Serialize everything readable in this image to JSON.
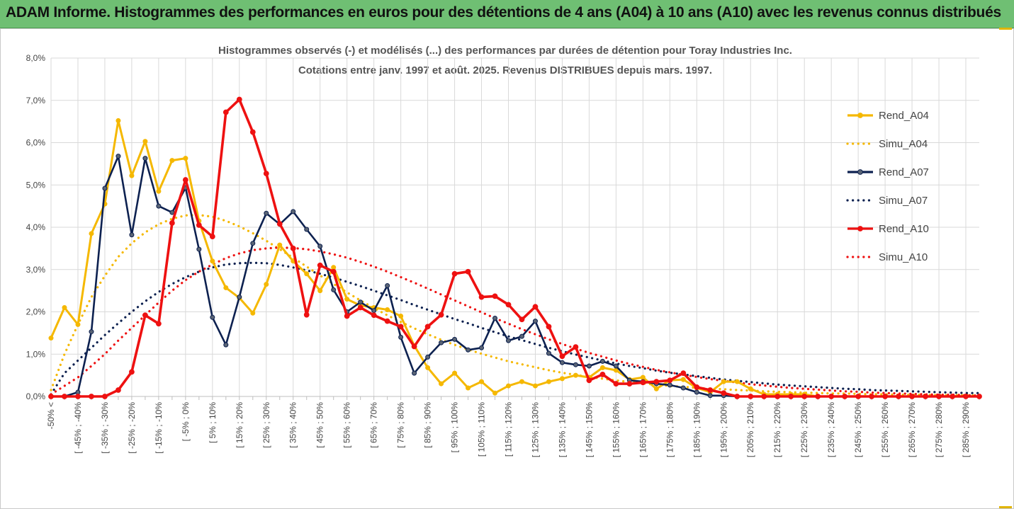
{
  "banner": {
    "title": "ADAM Informe. Histogrammes des performances en euros pour des détentions de 4 ans (A04) à 10 ans (A10) avec les revenus connus distribués"
  },
  "colors": {
    "banner_bg": "#6fbf73",
    "A04": "#f5b800",
    "A07": "#0d2150",
    "A10": "#ee1111",
    "grid": "#d9d9d9"
  },
  "chart_data": {
    "type": "line",
    "title_lines": [
      "Histogrammes observés (-) et modélisés (...) des performances par durées de détention pour Toray Industries Inc.",
      "Cotations entre janv. 1997 et août. 2025. Revenus DISTRIBUES depuis mars. 1997."
    ],
    "y_ticks": [
      "0,0%",
      "1,0%",
      "2,0%",
      "3,0%",
      "4,0%",
      "5,0%",
      "6,0%",
      "7,0%",
      "8,0%"
    ],
    "ylim": [
      0,
      8
    ],
    "grid": true,
    "legend_position": "right",
    "x_labels": [
      "-50% <",
      "[ -45% ; -40%",
      "[ -35% ; -30%",
      "[ -25% ; -20%",
      "[ -15% ; -10%",
      "[ -5% ; 0%",
      "[ 5% ; 10%",
      "[ 15% ; 20%",
      "[ 25% ; 30%",
      "[ 35% ; 40%",
      "[ 45% ; 50%",
      "[ 55% ; 60%",
      "[ 65% ; 70%",
      "[ 75% ; 80%",
      "[ 85% ; 90%",
      "[ 95% ; 100%",
      "[ 105% ; 110%",
      "[ 115% ; 120%",
      "[ 125% ; 130%",
      "[ 135% ; 140%",
      "[ 145% ; 150%",
      "[ 155% ; 160%",
      "[ 165% ; 170%",
      "[ 175% ; 180%",
      "[ 185% ; 190%",
      "[ 195% ; 200%",
      "[ 205% ; 210%",
      "[ 215% ; 220%",
      "[ 225% ; 230%",
      "[ 235% ; 240%",
      "[ 245% ; 250%",
      "[ 255% ; 260%",
      "[ 265% ; 270%",
      "[ 275% ; 280%",
      "[ 285% ; 290%"
    ],
    "n_points": 70,
    "series": [
      {
        "name": "Rend_A04",
        "style": "solid",
        "color": "#f5b800",
        "values": [
          1.38,
          2.1,
          1.7,
          3.85,
          4.55,
          6.52,
          5.22,
          6.03,
          4.85,
          5.58,
          5.63,
          4.15,
          3.2,
          2.57,
          2.33,
          1.97,
          2.65,
          3.58,
          3.2,
          2.9,
          2.5,
          3.05,
          2.3,
          2.15,
          2.1,
          2.05,
          1.9,
          1.2,
          0.68,
          0.3,
          0.55,
          0.2,
          0.35,
          0.08,
          0.25,
          0.35,
          0.25,
          0.35,
          0.42,
          0.5,
          0.45,
          0.68,
          0.62,
          0.4,
          0.45,
          0.18,
          0.38,
          0.4,
          0.2,
          0.1,
          0.35,
          0.35,
          0.18,
          0.05,
          0.05,
          0.05,
          0.05,
          0,
          0,
          0,
          0,
          0,
          0,
          0,
          0,
          0,
          0,
          0,
          0,
          0
        ]
      },
      {
        "name": "Simu_A04",
        "style": "dotted",
        "color": "#f5b800",
        "values": [
          0.15,
          1.0,
          1.7,
          2.35,
          2.85,
          3.3,
          3.62,
          3.88,
          4.07,
          4.2,
          4.28,
          4.29,
          4.25,
          4.15,
          4.02,
          3.86,
          3.68,
          3.48,
          3.28,
          3.07,
          2.86,
          2.66,
          2.46,
          2.27,
          2.09,
          1.92,
          1.76,
          1.61,
          1.47,
          1.34,
          1.22,
          1.11,
          1.01,
          0.92,
          0.83,
          0.76,
          0.69,
          0.62,
          0.56,
          0.51,
          0.46,
          0.42,
          0.38,
          0.34,
          0.31,
          0.28,
          0.25,
          0.23,
          0.2,
          0.18,
          0.17,
          0.15,
          0.14,
          0.12,
          0.11,
          0.1,
          0.09,
          0.08,
          0.07,
          0.07,
          0.06,
          0.05,
          0.05,
          0.04,
          0.04,
          0.04,
          0.03,
          0.03,
          0.03,
          0.02
        ]
      },
      {
        "name": "Rend_A07",
        "style": "solid",
        "color": "#0d2150",
        "values": [
          0,
          0,
          0.1,
          1.53,
          4.92,
          5.68,
          3.82,
          5.63,
          4.5,
          4.35,
          4.93,
          3.48,
          1.87,
          1.22,
          2.35,
          3.62,
          4.33,
          4.07,
          4.37,
          3.95,
          3.55,
          2.52,
          2.0,
          2.23,
          2.03,
          2.62,
          1.4,
          0.55,
          0.93,
          1.27,
          1.35,
          1.1,
          1.15,
          1.85,
          1.32,
          1.42,
          1.78,
          1.02,
          0.8,
          0.75,
          0.72,
          0.83,
          0.72,
          0.38,
          0.35,
          0.3,
          0.27,
          0.2,
          0.1,
          0.02,
          0.02,
          0,
          0,
          0,
          0,
          0,
          0,
          0,
          0,
          0,
          0,
          0,
          0,
          0,
          0,
          0,
          0,
          0,
          0,
          0
        ]
      },
      {
        "name": "Simu_A07",
        "style": "dotted",
        "color": "#0d2150",
        "values": [
          0.05,
          0.55,
          0.85,
          1.15,
          1.45,
          1.73,
          2.0,
          2.25,
          2.47,
          2.66,
          2.82,
          2.95,
          3.05,
          3.12,
          3.15,
          3.16,
          3.15,
          3.11,
          3.05,
          2.98,
          2.9,
          2.81,
          2.71,
          2.61,
          2.5,
          2.39,
          2.28,
          2.16,
          2.05,
          1.94,
          1.83,
          1.73,
          1.62,
          1.52,
          1.42,
          1.33,
          1.24,
          1.15,
          1.07,
          0.99,
          0.92,
          0.85,
          0.78,
          0.72,
          0.67,
          0.61,
          0.56,
          0.52,
          0.48,
          0.44,
          0.4,
          0.37,
          0.34,
          0.31,
          0.28,
          0.26,
          0.24,
          0.22,
          0.2,
          0.18,
          0.17,
          0.15,
          0.14,
          0.13,
          0.12,
          0.11,
          0.1,
          0.09,
          0.08,
          0.08
        ]
      },
      {
        "name": "Rend_A10",
        "style": "solid",
        "color": "#ee1111",
        "values": [
          0,
          0,
          0,
          0,
          0,
          0.15,
          0.58,
          1.92,
          1.72,
          4.1,
          5.12,
          4.05,
          3.78,
          6.72,
          7.02,
          6.25,
          5.27,
          4.08,
          3.5,
          1.93,
          3.1,
          2.95,
          1.9,
          2.1,
          1.92,
          1.78,
          1.65,
          1.18,
          1.65,
          1.93,
          2.9,
          2.95,
          2.35,
          2.37,
          2.17,
          1.82,
          2.12,
          1.65,
          0.95,
          1.17,
          0.38,
          0.52,
          0.3,
          0.3,
          0.33,
          0.35,
          0.38,
          0.55,
          0.22,
          0.15,
          0.08,
          0,
          0,
          0,
          0,
          0,
          0,
          0,
          0,
          0,
          0,
          0,
          0,
          0,
          0,
          0,
          0,
          0,
          0,
          0
        ]
      },
      {
        "name": "Simu_A10",
        "style": "dotted",
        "color": "#ee1111",
        "values": [
          0.05,
          0.25,
          0.45,
          0.72,
          1.0,
          1.32,
          1.62,
          1.92,
          2.22,
          2.5,
          2.75,
          2.95,
          3.12,
          3.27,
          3.38,
          3.46,
          3.5,
          3.52,
          3.51,
          3.48,
          3.43,
          3.36,
          3.28,
          3.18,
          3.07,
          2.95,
          2.82,
          2.69,
          2.55,
          2.41,
          2.27,
          2.13,
          1.99,
          1.85,
          1.72,
          1.59,
          1.47,
          1.35,
          1.24,
          1.13,
          1.03,
          0.94,
          0.85,
          0.77,
          0.7,
          0.63,
          0.57,
          0.51,
          0.46,
          0.41,
          0.37,
          0.33,
          0.29,
          0.26,
          0.23,
          0.2,
          0.18,
          0.16,
          0.14,
          0.12,
          0.11,
          0.09,
          0.08,
          0.07,
          0.06,
          0.05,
          0.04,
          0.04,
          0.03,
          0.02
        ]
      }
    ]
  }
}
